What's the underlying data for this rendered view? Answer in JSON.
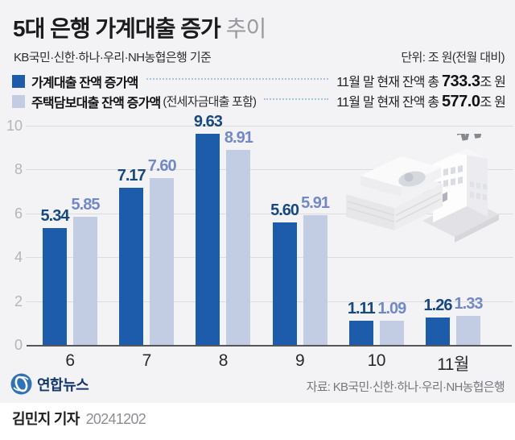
{
  "header": {
    "title_main": "5대 은행 가계대출 증가",
    "title_sub": "추이",
    "basis": "KB국민·신한·하나·우리·NH농협은행 기준",
    "unit": "단위: 조 원(전월 대비)"
  },
  "legend": [
    {
      "label": "가계대출 잔액 증가액",
      "note": "",
      "right_prefix": "11월 말 현재 잔액 총",
      "right_value": "733.3",
      "right_suffix": "조 원",
      "swatch_color": "#1d5caa"
    },
    {
      "label": "주택담보대출 잔액 증가액",
      "note": "(전세자금대출 포함)",
      "right_prefix": "11월 말 현재 잔액 총",
      "right_value": "577.0",
      "right_suffix": "조 원",
      "swatch_color": "#c2cde3"
    }
  ],
  "chart_data": {
    "type": "bar",
    "title": "5대 은행 가계대출 증가 추이",
    "unit": "조 원(전월 대비)",
    "categories": [
      "6",
      "7",
      "8",
      "9",
      "10",
      "11월"
    ],
    "series": [
      {
        "name": "가계대출 잔액 증가액",
        "color": "#1d5caa",
        "label_color": "#17497f",
        "values": [
          5.34,
          7.17,
          9.63,
          5.6,
          1.11,
          1.26
        ],
        "labels": [
          "5.34",
          "7.17",
          "9.63",
          "5.60",
          "1.11",
          "1.26"
        ]
      },
      {
        "name": "주택담보대출 잔액 증가액(전세자금대출 포함)",
        "color": "#c2cde3",
        "label_color": "#7289c5",
        "values": [
          5.85,
          7.6,
          8.91,
          5.91,
          1.09,
          1.33
        ],
        "labels": [
          "5.85",
          "7.60",
          "8.91",
          "5.91",
          "1.09",
          "1.33"
        ]
      }
    ],
    "ylim": [
      0,
      10
    ],
    "ytick_step": 2,
    "grid": true,
    "legend_position": "top"
  },
  "footer": {
    "logo_text": "연합뉴스",
    "source": "자료: KB국민·신한·하나·우리·NH농협은행",
    "byline": "김민지 기자",
    "date": "20241202"
  },
  "icons": {
    "logo": "yonhap-globe-icon",
    "illustration": "money-and-bank-illustration"
  },
  "colors": {
    "panel_bg": "#f3f3f5",
    "page_bg": "#ffffff",
    "series_dark": "#1d5caa",
    "series_light": "#c2cde3",
    "gridline": "#dcdcdf",
    "baseline": "#55565a",
    "ytick": "#b4b4b9",
    "xtick": "#29292b",
    "logo_blue": "#2f73b4"
  }
}
